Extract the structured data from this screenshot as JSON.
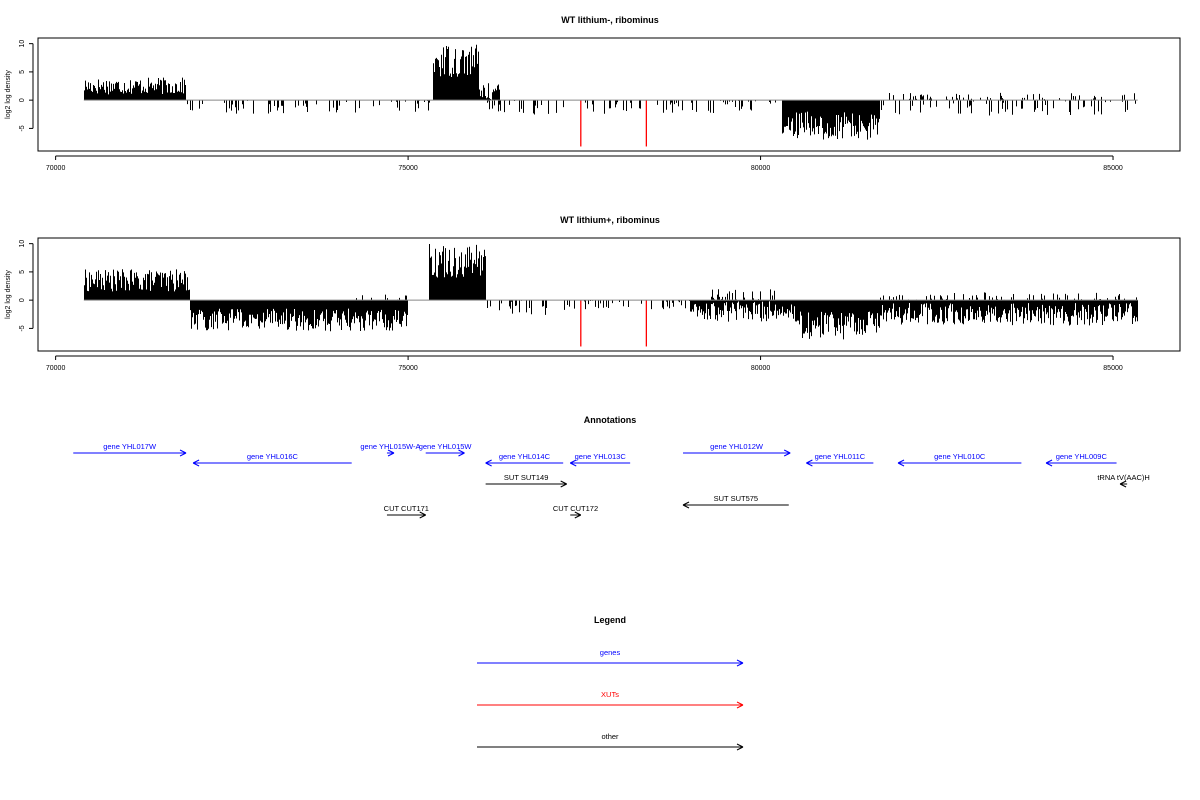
{
  "chart_data": [
    {
      "type": "bar",
      "title": "WT lithium-, ribominus",
      "ylabel": "log2 log density",
      "xlim": [
        69750,
        85950
      ],
      "ylim": [
        -9,
        11
      ],
      "xticks": [
        70000,
        75000,
        80000,
        85000
      ],
      "yticks": [
        -5,
        0,
        5,
        10
      ],
      "ytick_labels": [
        "-5",
        "0",
        "5",
        "10"
      ],
      "grid": false,
      "baseline": {
        "from": 70400,
        "to": 85350
      },
      "profile": [
        {
          "start": 70400,
          "end": 71850,
          "strand": "+",
          "value": 2.5,
          "jitter": 1.5
        },
        {
          "start": 71850,
          "end": 75350,
          "strand": "-",
          "value": 0.6,
          "jitter": 1.8,
          "sparse": true
        },
        {
          "start": 75350,
          "end": 76000,
          "strand": "+",
          "value": 7.0,
          "jitter": 3.0
        },
        {
          "start": 76000,
          "end": 76300,
          "strand": "+",
          "value": 1.5,
          "jitter": 1.5
        },
        {
          "start": 76000,
          "end": 77400,
          "strand": "-",
          "value": 0.8,
          "jitter": 1.8,
          "sparse": true
        },
        {
          "start": 77400,
          "end": 80300,
          "strand": "-",
          "value": 0.7,
          "jitter": 1.8,
          "sparse": true
        },
        {
          "start": 80300,
          "end": 81700,
          "strand": "-",
          "value": 4.5,
          "jitter": 2.5
        },
        {
          "start": 81700,
          "end": 85350,
          "strand": "-",
          "value": 0.8,
          "jitter": 2.0,
          "sparse": true
        },
        {
          "start": 81700,
          "end": 85350,
          "strand": "+",
          "value": 0.3,
          "jitter": 1.0,
          "sparse": true
        }
      ],
      "highlights": [
        {
          "x": 77450,
          "value": -8.2,
          "color": "#ff0000"
        },
        {
          "x": 78380,
          "value": -8.2,
          "color": "#ff0000"
        }
      ]
    },
    {
      "type": "bar",
      "title": "WT lithium+, ribominus",
      "ylabel": "log2 log density",
      "xlim": [
        69750,
        85950
      ],
      "ylim": [
        -9,
        11
      ],
      "xticks": [
        70000,
        75000,
        80000,
        85000
      ],
      "yticks": [
        -5,
        0,
        5,
        10
      ],
      "ytick_labels": [
        "-5",
        "0",
        "5",
        "10"
      ],
      "grid": false,
      "baseline": {
        "from": 70400,
        "to": 85350
      },
      "profile": [
        {
          "start": 70400,
          "end": 71900,
          "strand": "+",
          "value": 3.5,
          "jitter": 2.0
        },
        {
          "start": 71900,
          "end": 75000,
          "strand": "-",
          "value": 3.5,
          "jitter": 2.0
        },
        {
          "start": 74200,
          "end": 75000,
          "strand": "+",
          "value": 0.4,
          "jitter": 0.8,
          "sparse": true
        },
        {
          "start": 75300,
          "end": 76100,
          "strand": "+",
          "value": 7.0,
          "jitter": 3.0
        },
        {
          "start": 76100,
          "end": 77400,
          "strand": "-",
          "value": 1.0,
          "jitter": 1.8,
          "sparse": true
        },
        {
          "start": 77400,
          "end": 79000,
          "strand": "-",
          "value": 0.5,
          "jitter": 1.2,
          "sparse": true
        },
        {
          "start": 79000,
          "end": 80500,
          "strand": "-",
          "value": 2.0,
          "jitter": 1.8
        },
        {
          "start": 79300,
          "end": 80200,
          "strand": "+",
          "value": 0.8,
          "jitter": 1.2,
          "sparse": true
        },
        {
          "start": 80500,
          "end": 81700,
          "strand": "-",
          "value": 4.5,
          "jitter": 2.5
        },
        {
          "start": 81700,
          "end": 85350,
          "strand": "-",
          "value": 2.5,
          "jitter": 2.0
        },
        {
          "start": 81700,
          "end": 85350,
          "strand": "+",
          "value": 0.4,
          "jitter": 1.0,
          "sparse": true
        }
      ],
      "highlights": [
        {
          "x": 77450,
          "value": -8.2,
          "color": "#ff0000"
        },
        {
          "x": 78380,
          "value": -8.2,
          "color": "#ff0000"
        }
      ]
    }
  ],
  "annotations": {
    "title": "Annotations",
    "features": [
      {
        "label": "gene YHL017W",
        "start": 70250,
        "end": 71850,
        "strand": "+",
        "row": 0,
        "color": "#0000ff"
      },
      {
        "label": "gene YHL016C",
        "start": 71950,
        "end": 74200,
        "strand": "-",
        "row": 1,
        "color": "#0000ff"
      },
      {
        "label": "gene YHL015W-A",
        "start": 74700,
        "end": 74800,
        "strand": "+",
        "row": 0,
        "color": "#0000ff"
      },
      {
        "label": "gene YHL015W",
        "start": 75250,
        "end": 75800,
        "strand": "+",
        "row": 0,
        "color": "#0000ff"
      },
      {
        "label": "gene YHL014C",
        "start": 76100,
        "end": 77200,
        "strand": "-",
        "row": 1,
        "color": "#0000ff"
      },
      {
        "label": "gene YHL013C",
        "start": 77300,
        "end": 78150,
        "strand": "-",
        "row": 1,
        "color": "#0000ff"
      },
      {
        "label": "gene YHL012W",
        "start": 78900,
        "end": 80420,
        "strand": "+",
        "row": 0,
        "color": "#0000ff"
      },
      {
        "label": "gene YHL011C",
        "start": 80650,
        "end": 81600,
        "strand": "-",
        "row": 1,
        "color": "#0000ff"
      },
      {
        "label": "gene YHL010C",
        "start": 81950,
        "end": 83700,
        "strand": "-",
        "row": 1,
        "color": "#0000ff"
      },
      {
        "label": "gene YHL009C",
        "start": 84050,
        "end": 85050,
        "strand": "-",
        "row": 1,
        "color": "#0000ff"
      },
      {
        "label": "tRNA tV(AAC)H",
        "start": 85100,
        "end": 85200,
        "strand": "-",
        "row": 2,
        "color": "#000000"
      },
      {
        "label": "SUT SUT149",
        "start": 76100,
        "end": 77250,
        "strand": "+",
        "row": 2,
        "color": "#000000"
      },
      {
        "label": "SUT SUT575",
        "start": 78900,
        "end": 80400,
        "strand": "-",
        "row": 3,
        "color": "#000000"
      },
      {
        "label": "CUT CUT171",
        "start": 74700,
        "end": 75250,
        "strand": "+",
        "row": 4,
        "color": "#000000"
      },
      {
        "label": "CUT CUT172",
        "start": 77300,
        "end": 77450,
        "strand": "+",
        "row": 4,
        "color": "#000000"
      }
    ]
  },
  "legend": {
    "title": "Legend",
    "items": [
      {
        "label": "genes",
        "color": "#0000ff"
      },
      {
        "label": "XUTs",
        "color": "#ff0000"
      },
      {
        "label": "other",
        "color": "#000000"
      }
    ]
  }
}
